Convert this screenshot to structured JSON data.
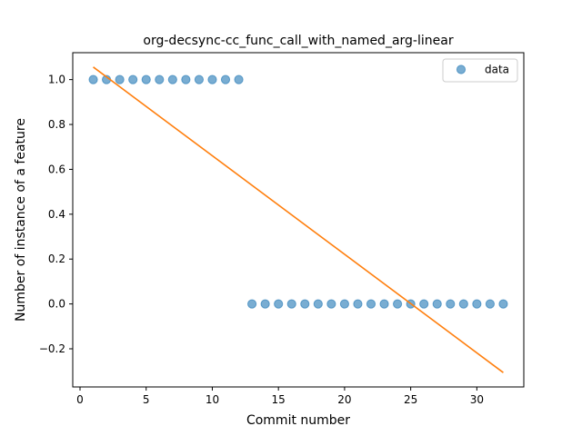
{
  "chart_data": {
    "type": "scatter",
    "title": "org-decsync-cc_func_call_with_named_arg-linear",
    "xlabel": "Commit number",
    "ylabel": "Number of instance of a feature",
    "xlim": [
      -0.55,
      33.55
    ],
    "ylim": [
      -0.37,
      1.12
    ],
    "xticks": [
      0,
      5,
      10,
      15,
      20,
      25,
      30
    ],
    "yticks": [
      -0.2,
      0.0,
      0.2,
      0.4,
      0.6,
      0.8,
      1.0
    ],
    "ytick_labels": [
      "−0.2",
      "0.0",
      "0.2",
      "0.4",
      "0.6",
      "0.8",
      "1.0"
    ],
    "legend": {
      "position": "top-right",
      "entries": [
        "data"
      ]
    },
    "series": [
      {
        "name": "data",
        "kind": "scatter",
        "color": "#1f77b4",
        "x": [
          1,
          2,
          3,
          4,
          5,
          6,
          7,
          8,
          9,
          10,
          11,
          12,
          13,
          14,
          15,
          16,
          17,
          18,
          19,
          20,
          21,
          22,
          23,
          24,
          25,
          26,
          27,
          28,
          29,
          30,
          31,
          32
        ],
        "y": [
          1,
          1,
          1,
          1,
          1,
          1,
          1,
          1,
          1,
          1,
          1,
          1,
          0,
          0,
          0,
          0,
          0,
          0,
          0,
          0,
          0,
          0,
          0,
          0,
          0,
          0,
          0,
          0,
          0,
          0,
          0,
          0
        ]
      },
      {
        "kind": "line",
        "color": "#ff7f0e",
        "x": [
          1,
          32
        ],
        "y": [
          1.056,
          -0.306
        ]
      }
    ]
  }
}
